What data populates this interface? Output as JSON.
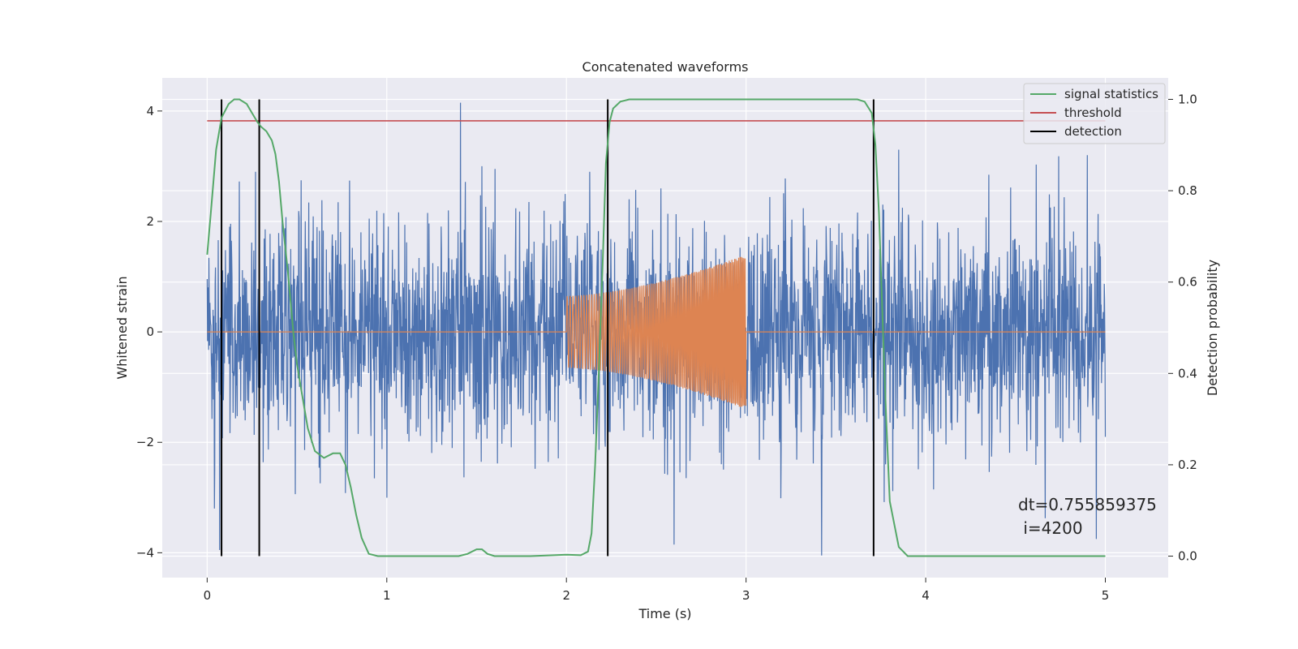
{
  "chart_data": {
    "type": "line",
    "title": "Concatenated waveforms",
    "xlabel": "Time (s)",
    "ylabel": "Whitened strain",
    "y2label": "Detection probability",
    "xlim": [
      -0.25,
      5.35
    ],
    "ylim": [
      -4.45,
      4.6
    ],
    "y2lim": [
      -0.047,
      1.047
    ],
    "xticks": [
      0,
      1,
      2,
      3,
      4,
      5
    ],
    "yticks": [
      -4,
      -2,
      0,
      2,
      4
    ],
    "y2ticks": [
      0.0,
      0.2,
      0.4,
      0.6,
      0.8,
      1.0
    ],
    "xtick_labels": [
      "0",
      "1",
      "2",
      "3",
      "4",
      "5"
    ],
    "ytick_labels": [
      "−4",
      "−2",
      "0",
      "2",
      "4"
    ],
    "y2tick_labels": [
      "0.0",
      "0.2",
      "0.4",
      "0.6",
      "0.8",
      "1.0"
    ],
    "grid": true,
    "legend_position": "top-right",
    "legend": [
      {
        "name": "signal statistics",
        "color": "#55a868"
      },
      {
        "name": "threshold",
        "color": "#c44e52"
      },
      {
        "name": "detection",
        "color": "#000000"
      }
    ],
    "colors": {
      "strain": "#4c72b0",
      "waveform": "#dd8452",
      "signal_statistics": "#55a868",
      "threshold": "#c44e52",
      "detection": "#000000",
      "axes_bg": "#eaeaf2",
      "grid": "#ffffff"
    },
    "strain_series": {
      "axis": "left",
      "x_range": [
        0,
        5
      ],
      "typical_amplitude": 1.0,
      "min": -4.05,
      "max": 4.15,
      "spikes": [
        {
          "x": 1.41,
          "y": 4.15
        },
        {
          "x": 3.42,
          "y": -4.05
        },
        {
          "x": 0.07,
          "y": -3.95
        },
        {
          "x": 4.95,
          "y": -3.75
        },
        {
          "x": 2.6,
          "y": -3.85
        },
        {
          "x": 0.04,
          "y": -3.2
        },
        {
          "x": 0.27,
          "y": 2.9
        },
        {
          "x": 2.13,
          "y": 2.9
        },
        {
          "x": 4.9,
          "y": 3.2
        },
        {
          "x": 1.53,
          "y": 3.0
        }
      ]
    },
    "waveform_series": {
      "axis": "left",
      "baseline": 0,
      "x_range": [
        0,
        5
      ],
      "burst_start": 2.0,
      "burst_end": 3.0,
      "amplitude_start": 0.65,
      "amplitude_end": 1.4
    },
    "signal_statistics": {
      "axis": "right",
      "x": [
        0,
        0.02,
        0.05,
        0.08,
        0.12,
        0.15,
        0.18,
        0.22,
        0.25,
        0.28,
        0.3,
        0.33,
        0.36,
        0.38,
        0.4,
        0.42,
        0.45,
        0.48,
        0.5,
        0.53,
        0.56,
        0.6,
        0.65,
        0.7,
        0.74,
        0.77,
        0.8,
        0.83,
        0.86,
        0.9,
        0.95,
        1.0,
        1.2,
        1.4,
        1.45,
        1.5,
        1.53,
        1.56,
        1.6,
        1.8,
        2.0,
        2.08,
        2.12,
        2.14,
        2.16,
        2.18,
        2.2,
        2.22,
        2.24,
        2.26,
        2.3,
        2.35,
        2.4,
        2.5,
        3.0,
        3.5,
        3.62,
        3.66,
        3.7,
        3.72,
        3.74,
        3.76,
        3.78,
        3.8,
        3.85,
        3.9,
        5.0
      ],
      "y": [
        0.66,
        0.75,
        0.89,
        0.96,
        0.99,
        1.0,
        1.0,
        0.99,
        0.97,
        0.95,
        0.94,
        0.93,
        0.91,
        0.88,
        0.82,
        0.73,
        0.62,
        0.49,
        0.42,
        0.35,
        0.28,
        0.23,
        0.215,
        0.225,
        0.225,
        0.2,
        0.15,
        0.09,
        0.04,
        0.005,
        0.0,
        0.0,
        0.0,
        0.0,
        0.005,
        0.015,
        0.015,
        0.005,
        0.0,
        0.0,
        0.003,
        0.002,
        0.01,
        0.05,
        0.2,
        0.4,
        0.62,
        0.86,
        0.95,
        0.98,
        0.995,
        1.0,
        1.0,
        1.0,
        1.0,
        1.0,
        1.0,
        0.995,
        0.97,
        0.9,
        0.75,
        0.52,
        0.3,
        0.12,
        0.02,
        0.0,
        0.0
      ]
    },
    "threshold": {
      "axis": "right",
      "value": 0.953,
      "x_range": [
        0,
        5
      ]
    },
    "detections": [
      0.08,
      0.29,
      2.23,
      3.71
    ],
    "detection_y_range": [
      0,
      1.0
    ],
    "annotation": {
      "text_line1": "dt=0.755859375",
      "text_line2": " i=4200",
      "x": 4.5,
      "y2": 0.1
    }
  }
}
